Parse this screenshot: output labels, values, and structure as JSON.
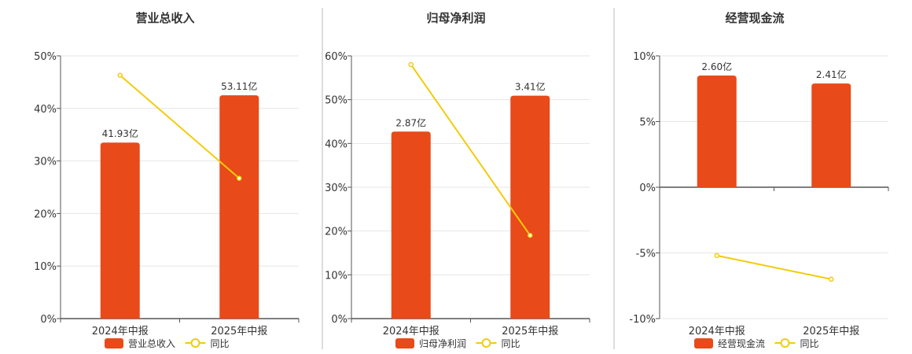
{
  "colors": {
    "bar": "#E84A19",
    "line": "#F2CC0C",
    "grid": "#E6E6E6",
    "axis": "#555555",
    "divider": "#BBBBBB"
  },
  "chart_data": [
    {
      "type": "bar",
      "title": "营业总收入",
      "categories": [
        "2024年中报",
        "2025年中报"
      ],
      "series": [
        {
          "name": "营业总收入",
          "kind": "bar",
          "values": [
            33.5,
            42.5
          ],
          "labels": [
            "41.93亿",
            "53.11亿"
          ]
        },
        {
          "name": "同比",
          "kind": "line",
          "values": [
            46.3,
            26.7
          ]
        }
      ],
      "ylim": [
        0,
        50
      ],
      "yticks": [
        0,
        10,
        20,
        30,
        40,
        50
      ],
      "yticklabels": [
        "0%",
        "10%",
        "20%",
        "30%",
        "40%",
        "50%"
      ],
      "grid": true,
      "legend": "bottom"
    },
    {
      "type": "bar",
      "title": "归母净利润",
      "categories": [
        "2024年中报",
        "2025年中报"
      ],
      "series": [
        {
          "name": "归母净利润",
          "kind": "bar",
          "values": [
            42.7,
            50.9
          ],
          "labels": [
            "2.87亿",
            "3.41亿"
          ]
        },
        {
          "name": "同比",
          "kind": "line",
          "values": [
            58.0,
            19.0
          ]
        }
      ],
      "ylim": [
        0,
        60
      ],
      "yticks": [
        0,
        10,
        20,
        30,
        40,
        50,
        60
      ],
      "yticklabels": [
        "0%",
        "10%",
        "20%",
        "30%",
        "40%",
        "50%",
        "60%"
      ],
      "grid": true,
      "legend": "bottom"
    },
    {
      "type": "bar",
      "title": "经营现金流",
      "categories": [
        "2024年中报",
        "2025年中报"
      ],
      "series": [
        {
          "name": "经营现金流",
          "kind": "bar",
          "values": [
            8.5,
            7.9
          ],
          "labels": [
            "2.60亿",
            "2.41亿"
          ]
        },
        {
          "name": "同比",
          "kind": "line",
          "values": [
            -5.2,
            -7.0
          ]
        }
      ],
      "ylim": [
        -10,
        10
      ],
      "yticks": [
        -10,
        -5,
        0,
        5,
        10
      ],
      "yticklabels": [
        "-10%",
        "-5%",
        "0%",
        "5%",
        "10%"
      ],
      "grid": true,
      "legend": "bottom"
    }
  ]
}
